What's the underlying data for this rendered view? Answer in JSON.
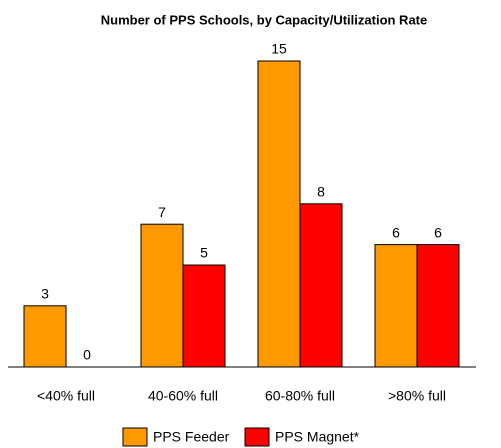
{
  "chart_data": {
    "type": "bar",
    "title": "Number of PPS Schools,  by Capacity/Utilization Rate",
    "categories": [
      "<40% full",
      "40-60% full",
      "60-80% full",
      ">80% full"
    ],
    "series": [
      {
        "name": "PPS Feeder",
        "color": "#FF9900",
        "values": [
          3,
          7,
          15,
          6
        ]
      },
      {
        "name": "PPS Magnet*",
        "color": "#FF0000",
        "values": [
          0,
          5,
          8,
          6
        ]
      }
    ]
  }
}
